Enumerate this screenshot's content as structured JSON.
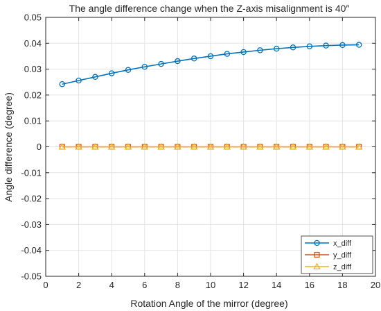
{
  "chart_data": {
    "type": "line",
    "title": "The angle difference change when the Z-axis misalignment is 40″",
    "xlabel": "Rotation Angle of the mirror (degree)",
    "ylabel": "Angle difference (degree)",
    "xlim": [
      0,
      20
    ],
    "ylim": [
      -0.05,
      0.05
    ],
    "xticks": [
      0,
      2,
      4,
      6,
      8,
      10,
      12,
      14,
      16,
      18,
      20
    ],
    "yticks": [
      -0.05,
      -0.04,
      -0.03,
      -0.02,
      -0.01,
      0,
      0.01,
      0.02,
      0.03,
      0.04,
      0.05
    ],
    "xtick_labels": [
      "0",
      "2",
      "4",
      "6",
      "8",
      "10",
      "12",
      "14",
      "16",
      "18",
      "20"
    ],
    "ytick_labels": [
      "-0.05",
      "-0.04",
      "-0.03",
      "-0.02",
      "-0.01",
      "0",
      "0.01",
      "0.02",
      "0.03",
      "0.04",
      "0.05"
    ],
    "grid": true,
    "legend_position": "bottom-right",
    "x": [
      1,
      2,
      3,
      4,
      5,
      6,
      7,
      8,
      9,
      10,
      11,
      12,
      13,
      14,
      15,
      16,
      17,
      18,
      19
    ],
    "series": [
      {
        "name": "x_diff",
        "color": "#0072BD",
        "marker": "circle",
        "values": [
          0.0242,
          0.0256,
          0.027,
          0.0284,
          0.0297,
          0.0309,
          0.032,
          0.0331,
          0.0341,
          0.035,
          0.0359,
          0.0366,
          0.0373,
          0.0379,
          0.0384,
          0.0388,
          0.0391,
          0.0393,
          0.0394
        ]
      },
      {
        "name": "y_diff",
        "color": "#D95319",
        "marker": "square",
        "values": [
          0,
          0,
          0,
          0,
          0,
          0,
          0,
          0,
          0,
          0,
          0,
          0,
          0,
          0,
          0,
          0,
          0,
          0,
          0
        ]
      },
      {
        "name": "z_diff",
        "color": "#EDB120",
        "marker": "triangle",
        "values": [
          0,
          0,
          0,
          0,
          0,
          0,
          0,
          0,
          0,
          0,
          0,
          0,
          0,
          0,
          0,
          0,
          0,
          0,
          0
        ]
      }
    ]
  }
}
